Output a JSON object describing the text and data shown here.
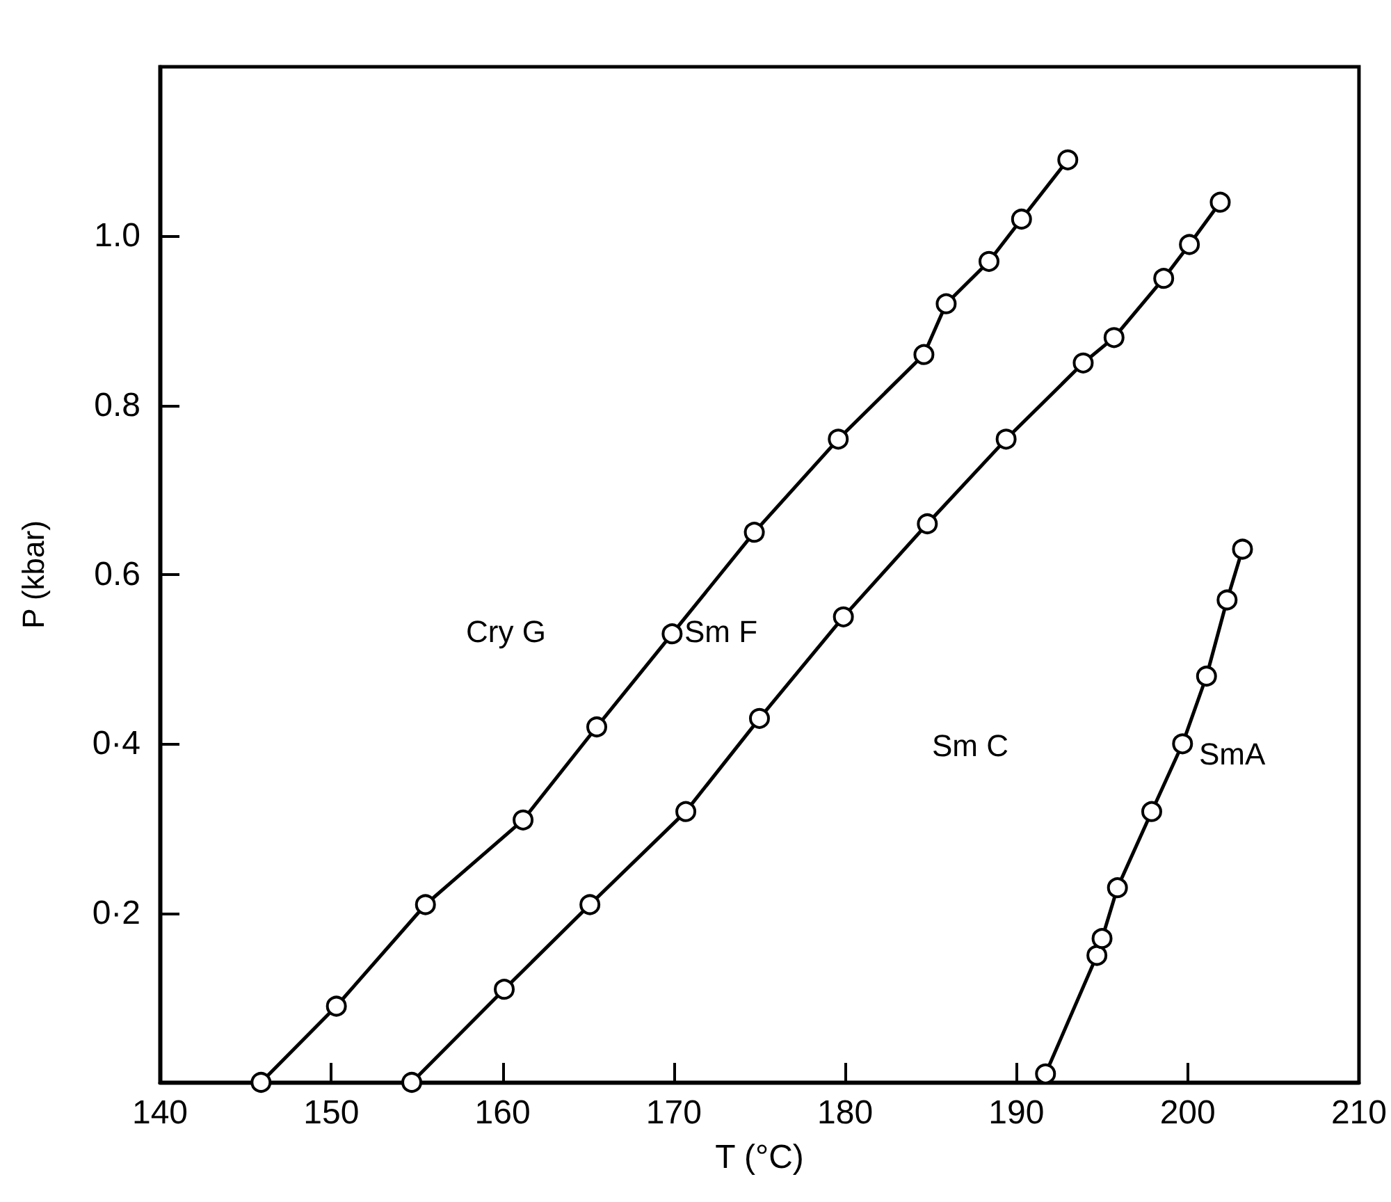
{
  "chart_data": {
    "type": "line",
    "xlabel": "T (°C)",
    "ylabel": "P (kbar)",
    "xlim": [
      140,
      210
    ],
    "xticks": [
      140,
      150,
      160,
      170,
      180,
      190,
      200,
      210
    ],
    "ylim": [
      0,
      1.2
    ],
    "yticks": [
      {
        "value": 0.2,
        "label": "0·2"
      },
      {
        "value": 0.4,
        "label": "0·4"
      },
      {
        "value": 0.6,
        "label": "0.6"
      },
      {
        "value": 0.8,
        "label": "0.8"
      },
      {
        "value": 1.0,
        "label": "1.0"
      }
    ],
    "grid": false,
    "marker": "circle",
    "line_style": "solid",
    "series": [
      {
        "color": "#000000",
        "x": [
          145.9,
          150.3,
          155.5,
          161.2,
          165.5,
          169.9,
          174.7,
          179.6,
          184.6,
          185.9,
          188.4,
          190.3,
          193.0
        ],
        "values": [
          0.0,
          0.09,
          0.21,
          0.31,
          0.42,
          0.53,
          0.65,
          0.76,
          0.86,
          0.92,
          0.97,
          1.02,
          1.09
        ]
      },
      {
        "color": "#000000",
        "x": [
          154.7,
          160.1,
          165.1,
          170.7,
          175.0,
          179.9,
          184.8,
          189.4,
          193.9,
          195.7,
          198.6,
          200.1,
          201.9
        ],
        "values": [
          0.0,
          0.11,
          0.21,
          0.32,
          0.43,
          0.55,
          0.66,
          0.76,
          0.85,
          0.88,
          0.95,
          0.99,
          1.04
        ]
      },
      {
        "color": "#000000",
        "x": [
          191.7,
          194.7,
          195.0,
          195.9,
          197.9,
          199.7,
          201.1,
          202.3,
          203.2
        ],
        "values": [
          0.01,
          0.15,
          0.17,
          0.23,
          0.32,
          0.4,
          0.48,
          0.57,
          0.63
        ]
      }
    ],
    "annotations": [
      "Cry G",
      "Sm F",
      "Sm C",
      "SmA"
    ]
  }
}
